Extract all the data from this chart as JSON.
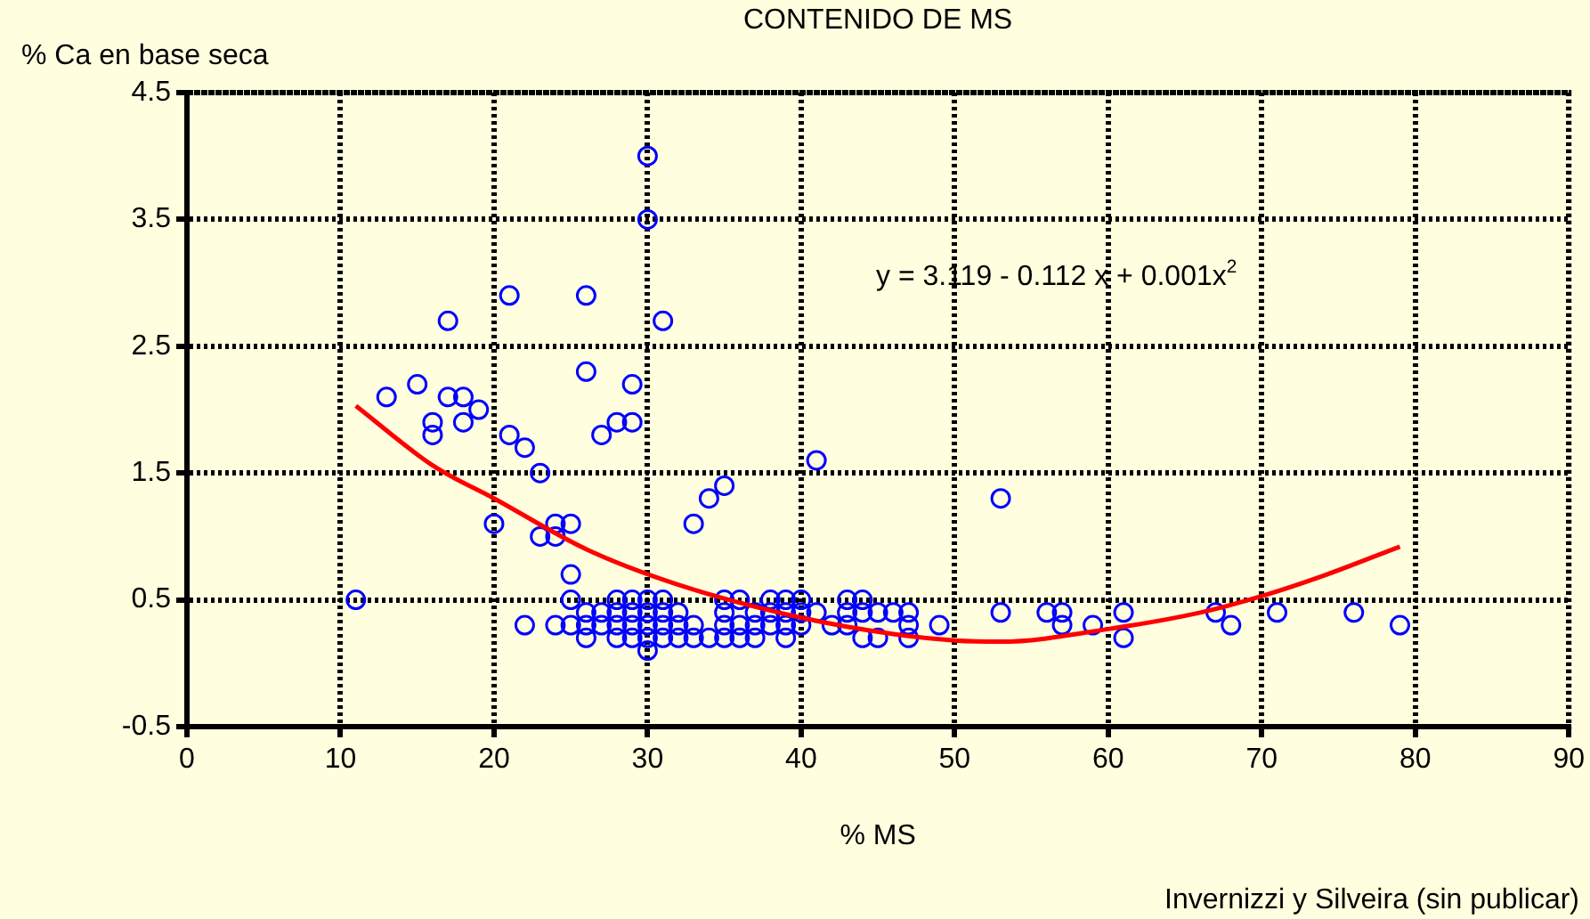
{
  "chart_data": {
    "type": "scatter",
    "title": "CONTENIDO DE MS",
    "xlabel": "% MS",
    "ylabel": "% Ca en base seca",
    "xlim": [
      0,
      90
    ],
    "xticks": [
      0,
      10,
      20,
      30,
      40,
      50,
      60,
      70,
      80,
      90
    ],
    "ylim": [
      -0.5,
      4.5
    ],
    "yticks": [
      -0.5,
      0.5,
      1.5,
      2.5,
      3.5,
      4.5
    ],
    "grid": true,
    "legend": false,
    "marker": "circle",
    "annotations": [
      "y = 3.119 - 0.112 x + 0.001x$^{2}$",
      "Invernizzi y Silveira (sin publicar)"
    ],
    "series": [
      {
        "type": "scatter",
        "color": "#0000ff",
        "x": [
          30,
          30,
          21,
          26,
          17,
          31,
          26,
          29,
          15,
          13,
          17,
          18,
          19,
          18,
          16,
          16,
          21,
          22,
          23,
          27,
          28,
          29,
          20,
          24,
          25,
          23,
          24,
          25,
          11,
          25,
          22,
          24,
          25,
          26,
          26,
          26,
          27,
          27,
          28,
          28,
          28,
          28,
          29,
          29,
          29,
          29,
          30,
          30,
          30,
          30,
          30,
          31,
          31,
          31,
          31,
          32,
          32,
          32,
          33,
          33,
          34,
          33,
          34,
          35,
          41,
          53,
          35,
          35,
          35,
          35,
          36,
          36,
          36,
          37,
          37,
          37,
          38,
          38,
          38,
          39,
          39,
          39,
          39,
          40,
          40,
          40,
          41,
          42,
          43,
          43,
          43,
          44,
          44,
          44,
          45,
          45,
          46,
          47,
          47,
          47,
          49,
          53,
          56,
          57,
          57,
          59,
          61,
          61,
          67,
          68,
          71,
          76,
          79
        ],
        "values": [
          4.0,
          3.5,
          2.9,
          2.9,
          2.7,
          2.7,
          2.3,
          2.2,
          2.2,
          2.1,
          2.1,
          2.1,
          2.0,
          1.9,
          1.9,
          1.8,
          1.8,
          1.7,
          1.5,
          1.8,
          1.9,
          1.9,
          1.1,
          1.1,
          1.1,
          1.0,
          1.0,
          0.7,
          0.5,
          0.5,
          0.3,
          0.3,
          0.3,
          0.4,
          0.3,
          0.2,
          0.4,
          0.3,
          0.5,
          0.4,
          0.3,
          0.2,
          0.5,
          0.4,
          0.3,
          0.2,
          0.5,
          0.4,
          0.3,
          0.2,
          0.1,
          0.5,
          0.4,
          0.3,
          0.2,
          0.4,
          0.3,
          0.2,
          0.3,
          0.2,
          0.2,
          1.1,
          1.3,
          1.4,
          1.6,
          1.3,
          0.5,
          0.4,
          0.3,
          0.2,
          0.5,
          0.3,
          0.2,
          0.4,
          0.3,
          0.2,
          0.5,
          0.4,
          0.3,
          0.5,
          0.4,
          0.3,
          0.2,
          0.5,
          0.4,
          0.3,
          0.4,
          0.3,
          0.5,
          0.4,
          0.3,
          0.5,
          0.4,
          0.2,
          0.4,
          0.2,
          0.4,
          0.4,
          0.3,
          0.2,
          0.3,
          0.4,
          0.4,
          0.4,
          0.3,
          0.3,
          0.4,
          0.2,
          0.4,
          0.3,
          0.4,
          0.4,
          0.3
        ]
      },
      {
        "type": "line",
        "color": "#ff0000",
        "marker": "none",
        "x": [
          11,
          16,
          20,
          26,
          32,
          40,
          46,
          50,
          53,
          60,
          66,
          70,
          74,
          79
        ],
        "values": [
          2.03,
          1.56,
          1.3,
          0.9,
          0.62,
          0.36,
          0.23,
          0.18,
          0.17,
          0.27,
          0.4,
          0.53,
          0.69,
          0.92
        ]
      }
    ]
  }
}
